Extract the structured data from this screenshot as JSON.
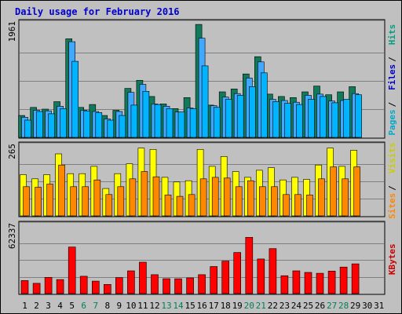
{
  "chart_data": {
    "type": "bar",
    "title": "Daily usage for February 2016",
    "categories": [
      "1",
      "2",
      "3",
      "4",
      "5",
      "6",
      "7",
      "8",
      "9",
      "10",
      "11",
      "12",
      "13",
      "14",
      "15",
      "16",
      "17",
      "18",
      "19",
      "20",
      "21",
      "22",
      "23",
      "24",
      "25",
      "26",
      "27",
      "28",
      "29",
      "30",
      "31"
    ],
    "weekend_days": [
      "6",
      "7",
      "13",
      "14",
      "20",
      "21",
      "27",
      "28"
    ],
    "panels": [
      {
        "ymax": 1961,
        "ymax_label": "1961",
        "side_labels": [
          {
            "text": "Pages",
            "color": "#00aacc"
          },
          {
            "text": "Files",
            "color": "#0000cc"
          },
          {
            "text": "Hits",
            "color": "#00a080"
          }
        ],
        "series": [
          {
            "name": "Hits",
            "color": "#107a5a",
            "values": [
              380,
              520,
              490,
              620,
              1710,
              520,
              570,
              380,
              470,
              850,
              990,
              710,
              580,
              500,
              690,
              1960,
              560,
              790,
              840,
              1100,
              1400,
              750,
              710,
              690,
              790,
              890,
              740,
              790,
              880,
              null,
              null
            ]
          },
          {
            "name": "Files",
            "color": "#40a8ff",
            "values": [
              350,
              470,
              460,
              540,
              1660,
              470,
              450,
              320,
              450,
              780,
              920,
              580,
              540,
              440,
              510,
              1720,
              550,
              700,
              760,
              1030,
              1310,
              660,
              640,
              610,
              730,
              750,
              630,
              640,
              760,
              null,
              null
            ]
          },
          {
            "name": "Pages",
            "color": "#00b4ff",
            "values": [
              300,
              450,
              410,
              500,
              1320,
              460,
              430,
              300,
              380,
              560,
              800,
              570,
              500,
              440,
              500,
              1240,
              520,
              660,
              730,
              880,
              1120,
              620,
              590,
              570,
              660,
              710,
              600,
              660,
              740,
              null,
              null
            ]
          }
        ]
      },
      {
        "ymax": 265,
        "ymax_label": "265",
        "side_labels": [
          {
            "text": "Sites",
            "color": "#ff8800"
          },
          {
            "text": "Visits",
            "color": "#cccc00"
          }
        ],
        "series": [
          {
            "name": "Visits",
            "color": "#ffff00",
            "values": [
              158,
              142,
              158,
              238,
              162,
              162,
              190,
              105,
              162,
              200,
              260,
              255,
              148,
              130,
              135,
              255,
              190,
              228,
              170,
              148,
              175,
              185,
              138,
              148,
              140,
              195,
              260,
              190,
              252,
              null,
              null
            ]
          },
          {
            "name": "Sites",
            "color": "#ff8800",
            "values": [
              112,
              110,
              122,
              195,
              112,
              112,
              138,
              82,
              112,
              142,
              170,
              150,
              80,
              75,
              82,
              142,
              148,
              145,
              112,
              135,
              112,
              112,
              82,
              82,
              80,
              142,
              188,
              142,
              188,
              null,
              null
            ]
          }
        ]
      },
      {
        "ymax": 62337,
        "ymax_label": "62337",
        "side_labels": [
          {
            "text": "KBytes",
            "color": "#cc0000"
          }
        ],
        "series": [
          {
            "name": "KBytes",
            "color": "#ff0000",
            "values": [
              12000,
              9500,
              15000,
              13000,
              43000,
              16000,
              11500,
              8500,
              14800,
              21000,
              29000,
              17500,
              13800,
              13700,
              14500,
              17500,
              25000,
              30000,
              38000,
              52000,
              32000,
              41500,
              16500,
              21000,
              19600,
              18800,
              20800,
              24500,
              27500,
              null,
              null
            ]
          }
        ]
      }
    ]
  }
}
